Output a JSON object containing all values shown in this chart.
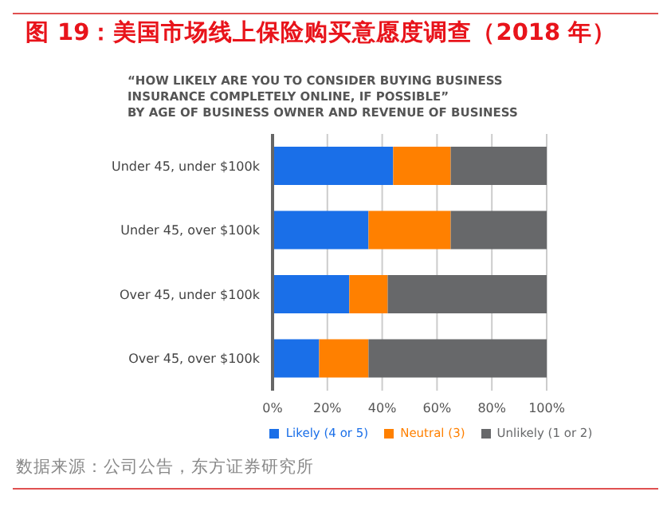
{
  "chart_data": {
    "type": "bar",
    "orientation": "horizontal",
    "stacked": true,
    "title": "图 19：美国市场线上保险购买意愿度调查（2018 年）",
    "subtitle": "“HOW LIKELY ARE YOU TO CONSIDER BUYING BUSINESS\nINSURANCE COMPLETELY ONLINE, IF POSSIBLE”\nBY AGE OF BUSINESS OWNER AND REVENUE OF BUSINESS",
    "categories": [
      "Under 45, under $100k",
      "Under 45, over $100k",
      "Over 45, under $100k",
      "Over 45, over $100k"
    ],
    "series": [
      {
        "name": "Likely (4 or 5)",
        "color": "#1a6fe8",
        "values": [
          44,
          35,
          28,
          17
        ]
      },
      {
        "name": "Neutral (3)",
        "color": "#ff8000",
        "values": [
          21,
          30,
          14,
          18
        ]
      },
      {
        "name": "Unlikely (1 or 2)",
        "color": "#67686a",
        "values": [
          35,
          35,
          58,
          65
        ]
      }
    ],
    "xlim": [
      0,
      100
    ],
    "xticks": [
      {
        "value": 0,
        "label": "0%"
      },
      {
        "value": 20,
        "label": "20%"
      },
      {
        "value": 40,
        "label": "40%"
      },
      {
        "value": 60,
        "label": "60%"
      },
      {
        "value": 80,
        "label": "80%"
      },
      {
        "value": 100,
        "label": "100%"
      }
    ],
    "grid": "x",
    "legend": "bottom",
    "annotations": [
      "数据来源：公司公告，东方证券研究所"
    ]
  }
}
